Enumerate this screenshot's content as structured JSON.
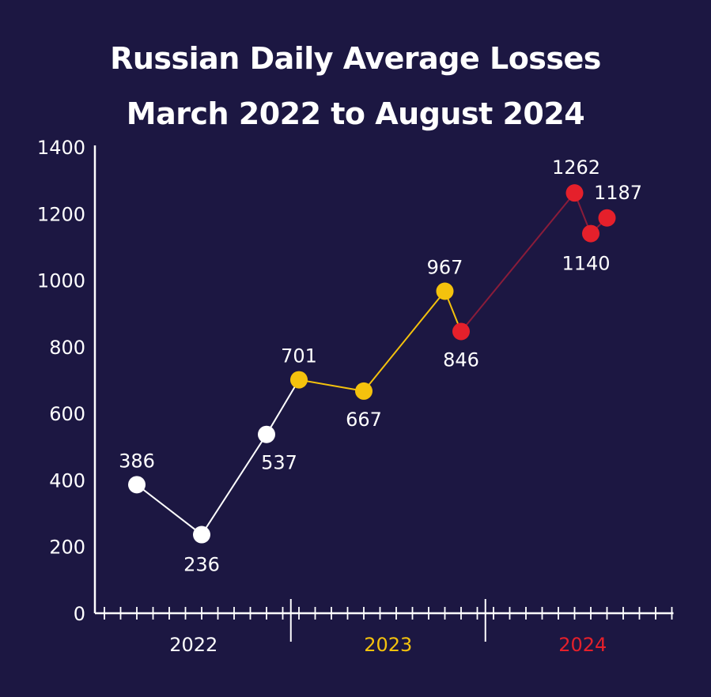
{
  "chart_data": {
    "type": "line",
    "title_line1": "Russian Daily Average Losses",
    "title_line2": "March 2022 to August 2024",
    "xlabel": "",
    "ylabel": "",
    "ylim": [
      0,
      1400
    ],
    "y_ticks": [
      0,
      200,
      400,
      600,
      800,
      1000,
      1200,
      1400
    ],
    "x_axis_start_month": "2022-01",
    "x_axis_months": 36,
    "year_labels": [
      {
        "label": "2022",
        "color": "#ffffff"
      },
      {
        "label": "2023",
        "color": "#f4c20d"
      },
      {
        "label": "2024",
        "color": "#e5202b"
      }
    ],
    "series": [
      {
        "color": "#ffffff",
        "points": [
          {
            "x": "2022-03",
            "y": 386,
            "label": "386"
          },
          {
            "x": "2022-07",
            "y": 236,
            "label": "236"
          },
          {
            "x": "2022-11",
            "y": 537,
            "label": "537"
          }
        ]
      },
      {
        "color": "#f4c20d",
        "points": [
          {
            "x": "2023-01",
            "y": 701,
            "label": "701"
          },
          {
            "x": "2023-05",
            "y": 667,
            "label": "667"
          },
          {
            "x": "2023-10",
            "y": 967,
            "label": "967"
          }
        ]
      },
      {
        "color": "#e5202b",
        "points": [
          {
            "x": "2023-11",
            "y": 846,
            "label": "846"
          },
          {
            "x": "2024-06",
            "y": 1262,
            "label": "1262"
          },
          {
            "x": "2024-07",
            "y": 1140,
            "label": "1140"
          },
          {
            "x": "2024-08",
            "y": 1187,
            "label": "1187"
          }
        ]
      }
    ]
  },
  "colors": {
    "background": "#1c1742",
    "axis": "#ffffff",
    "link_white_to_yellow": "#ffffff",
    "link_yellow_to_red": "#f4c20d",
    "line_red": "#8a1c3a"
  }
}
